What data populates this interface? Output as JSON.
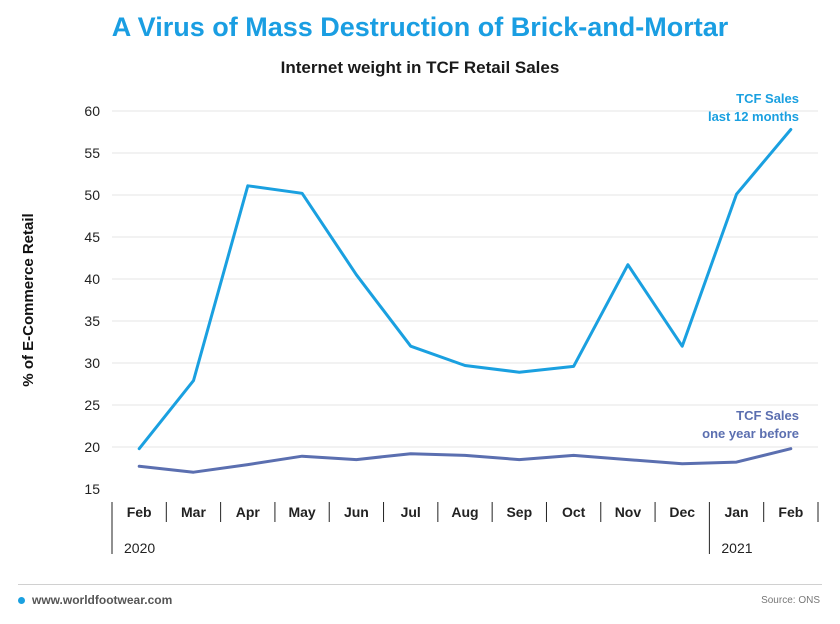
{
  "title": "A Virus of Mass Destruction of Brick-and-Mortar",
  "subtitle": "Internet weight in TCF Retail Sales",
  "colors": {
    "title": "#1a9ee2",
    "series_main": "#1aa0e0",
    "series_before": "#5b6fb0",
    "grid": "#e6e6e6",
    "axis": "#222222"
  },
  "footer": {
    "website": "www.worldfootwear.com",
    "source": "Source: ONS"
  },
  "chart_data": {
    "type": "line",
    "title": "Internet weight in TCF Retail Sales",
    "ylabel": "% of E-Commerce Retail",
    "xlabel": "",
    "ylim": [
      15,
      60
    ],
    "yticks": [
      15,
      20,
      25,
      30,
      35,
      40,
      45,
      50,
      55,
      60
    ],
    "grid": "horizontal",
    "categories": [
      "Feb",
      "Mar",
      "Apr",
      "May",
      "Jun",
      "Jul",
      "Aug",
      "Sep",
      "Oct",
      "Nov",
      "Dec",
      "Jan",
      "Feb"
    ],
    "year_labels": [
      "2020",
      "2021"
    ],
    "series": [
      {
        "name": "TCF Sales last 12 months",
        "label_lines": [
          "TCF Sales",
          "last 12 months"
        ],
        "color": "#1aa0e0",
        "values": [
          19.8,
          27.9,
          51.1,
          50.2,
          40.5,
          32.0,
          29.7,
          28.9,
          29.6,
          41.7,
          32.0,
          50.1,
          57.8
        ]
      },
      {
        "name": "TCF Sales one year before",
        "label_lines": [
          "TCF Sales",
          "one year before"
        ],
        "color": "#5b6fb0",
        "values": [
          17.7,
          17.0,
          17.9,
          18.9,
          18.5,
          19.2,
          19.0,
          18.5,
          19.0,
          18.5,
          18.0,
          18.2,
          19.8
        ]
      }
    ]
  }
}
